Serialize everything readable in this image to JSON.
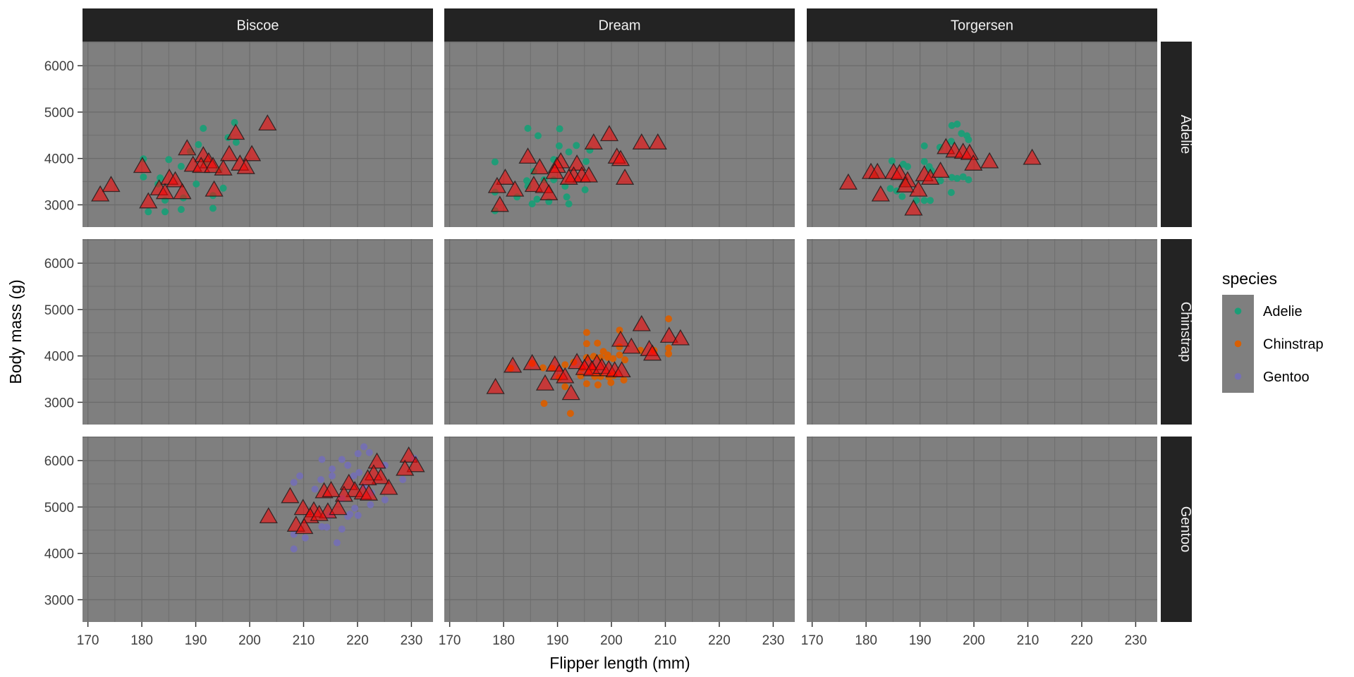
{
  "chart_data": {
    "type": "scatter",
    "title": "",
    "xlabel": "Flipper length (mm)",
    "ylabel": "Body mass (g)",
    "facet_cols": [
      "Biscoe",
      "Dream",
      "Torgersen"
    ],
    "facet_rows": [
      "Adelie",
      "Chinstrap",
      "Gentoo"
    ],
    "x_ticks": [
      170,
      180,
      190,
      200,
      210,
      220,
      230
    ],
    "y_ticks": [
      6000,
      5000,
      4000,
      3000
    ],
    "x_minor_ticks": [
      175,
      185,
      195,
      205,
      215,
      225
    ],
    "y_minor_ticks": [
      6500,
      5500,
      4500,
      3500
    ],
    "x_domain": [
      169.0,
      234.0
    ],
    "y_domain": [
      2520,
      6520
    ],
    "grid": true,
    "legend": {
      "title": "species",
      "position": "right",
      "entries": [
        {
          "label": "Adelie",
          "color": "#1B9E77"
        },
        {
          "label": "Chinstrap",
          "color": "#D95F02"
        },
        {
          "label": "Gentoo",
          "color": "#7570B3"
        }
      ]
    },
    "colors": {
      "panel_bg": "#7F7F7F",
      "grid_line": "#6C6C6C",
      "strip_bg": "#232323",
      "strip_text": "#F0F0F0",
      "tick_text": "#3F3F3F",
      "tick_mark": "#333333",
      "triangle_fill": "rgba(255,0,0,0.55)",
      "triangle_stroke": "rgba(30,25,25,0.8)",
      "figure_bg": "#FFFFFF"
    },
    "panels": [
      {
        "row": "Adelie",
        "col": "Biscoe",
        "species": "Adelie",
        "dots": [
          [
            197.2,
            4775
          ],
          [
            191.4,
            4650
          ],
          [
            196.0,
            4450
          ],
          [
            197.5,
            4350
          ],
          [
            190.5,
            4300
          ],
          [
            189.0,
            4150
          ],
          [
            185.0,
            3975
          ],
          [
            180.3,
            3990
          ],
          [
            187.3,
            3830
          ],
          [
            191.8,
            3930
          ],
          [
            194.3,
            3750
          ],
          [
            180.3,
            3600
          ],
          [
            183.4,
            3580
          ],
          [
            183.0,
            3450
          ],
          [
            190.1,
            3450
          ],
          [
            195.1,
            3360
          ],
          [
            187.7,
            3150
          ],
          [
            184.3,
            3100
          ],
          [
            193.2,
            3200
          ],
          [
            181.2,
            2850
          ],
          [
            184.3,
            2850
          ],
          [
            187.3,
            2900
          ],
          [
            193.2,
            2925
          ]
        ],
        "triangles": [
          [
            203.3,
            4750
          ],
          [
            197.4,
            4550
          ],
          [
            188.4,
            4215
          ],
          [
            191.4,
            4065
          ],
          [
            192.4,
            3935
          ],
          [
            196.2,
            4090
          ],
          [
            200.4,
            4090
          ],
          [
            180.1,
            3835
          ],
          [
            189.5,
            3860
          ],
          [
            191.0,
            3835
          ],
          [
            193.2,
            3835
          ],
          [
            195.1,
            3780
          ],
          [
            198.2,
            3885
          ],
          [
            199.3,
            3810
          ],
          [
            185.1,
            3580
          ],
          [
            186.2,
            3525
          ],
          [
            174.3,
            3425
          ],
          [
            172.3,
            3220
          ],
          [
            183.2,
            3350
          ],
          [
            184.3,
            3270
          ],
          [
            187.5,
            3270
          ],
          [
            193.4,
            3325
          ],
          [
            181.2,
            3070
          ]
        ]
      },
      {
        "row": "Adelie",
        "col": "Dream",
        "species": "Adelie",
        "dots": [
          [
            184.5,
            4650
          ],
          [
            186.4,
            4490
          ],
          [
            190.4,
            4640
          ],
          [
            190.3,
            4270
          ],
          [
            192.1,
            4140
          ],
          [
            193.5,
            4280
          ],
          [
            196.0,
            4180
          ],
          [
            178.4,
            3925
          ],
          [
            189.3,
            3975
          ],
          [
            185.6,
            3720
          ],
          [
            195.3,
            3935
          ],
          [
            184.3,
            3520
          ],
          [
            187.5,
            3540
          ],
          [
            189.3,
            3540
          ],
          [
            191.4,
            3400
          ],
          [
            195.1,
            3325
          ],
          [
            184.5,
            3400
          ],
          [
            182.5,
            3170
          ],
          [
            186.2,
            3120
          ],
          [
            188.4,
            3070
          ],
          [
            191.7,
            3170
          ],
          [
            192.1,
            3020
          ],
          [
            185.3,
            3020
          ],
          [
            178.4,
            3275
          ],
          [
            178.4,
            2875
          ]
        ],
        "triangles": [
          [
            199.6,
            4520
          ],
          [
            196.7,
            4340
          ],
          [
            205.6,
            4340
          ],
          [
            208.6,
            4340
          ],
          [
            184.5,
            4035
          ],
          [
            201.0,
            4035
          ],
          [
            201.7,
            3985
          ],
          [
            186.7,
            3805
          ],
          [
            190.6,
            3935
          ],
          [
            189.9,
            3835
          ],
          [
            193.6,
            3885
          ],
          [
            189.5,
            3705
          ],
          [
            193.0,
            3630
          ],
          [
            194.5,
            3630
          ],
          [
            195.8,
            3630
          ],
          [
            192.1,
            3580
          ],
          [
            180.3,
            3580
          ],
          [
            178.8,
            3400
          ],
          [
            182.1,
            3325
          ],
          [
            185.6,
            3425
          ],
          [
            187.5,
            3400
          ],
          [
            188.4,
            3245
          ],
          [
            202.5,
            3580
          ],
          [
            179.3,
            2995
          ]
        ]
      },
      {
        "row": "Adelie",
        "col": "Torgersen",
        "species": "Adelie",
        "dots": [
          [
            195.9,
            4710
          ],
          [
            196.9,
            4740
          ],
          [
            197.7,
            4540
          ],
          [
            198.7,
            4490
          ],
          [
            199.0,
            4405
          ],
          [
            190.8,
            4270
          ],
          [
            193.7,
            4240
          ],
          [
            195.8,
            4370
          ],
          [
            184.8,
            3945
          ],
          [
            186.9,
            3875
          ],
          [
            187.7,
            3825
          ],
          [
            190.8,
            3935
          ],
          [
            191.7,
            3825
          ],
          [
            192.1,
            3740
          ],
          [
            193.8,
            3520
          ],
          [
            195.9,
            3590
          ],
          [
            196.9,
            3570
          ],
          [
            198.0,
            3605
          ],
          [
            199.0,
            3540
          ],
          [
            195.8,
            3265
          ],
          [
            184.5,
            3350
          ],
          [
            185.7,
            3300
          ],
          [
            186.7,
            3180
          ],
          [
            187.3,
            3450
          ],
          [
            189.3,
            3095
          ],
          [
            190.8,
            3095
          ],
          [
            191.9,
            3095
          ],
          [
            181.7,
            3630
          ]
        ],
        "triangles": [
          [
            194.8,
            4240
          ],
          [
            196.4,
            4165
          ],
          [
            198.0,
            4140
          ],
          [
            199.2,
            4115
          ],
          [
            199.9,
            3885
          ],
          [
            202.9,
            3935
          ],
          [
            210.8,
            4010
          ],
          [
            180.9,
            3705
          ],
          [
            182.1,
            3705
          ],
          [
            185.1,
            3705
          ],
          [
            186.2,
            3680
          ],
          [
            187.7,
            3525
          ],
          [
            190.8,
            3655
          ],
          [
            191.9,
            3580
          ],
          [
            193.8,
            3730
          ],
          [
            187.3,
            3415
          ],
          [
            189.7,
            3325
          ],
          [
            182.7,
            3220
          ],
          [
            176.7,
            3475
          ],
          [
            188.8,
            2915
          ]
        ]
      },
      {
        "row": "Chinstrap",
        "col": "Dream",
        "species": "Chinstrap",
        "dots": [
          [
            210.6,
            4800
          ],
          [
            201.5,
            4555
          ],
          [
            195.4,
            4505
          ],
          [
            195.4,
            4265
          ],
          [
            197.4,
            4275
          ],
          [
            198.5,
            4095
          ],
          [
            199.3,
            4020
          ],
          [
            201.5,
            4195
          ],
          [
            205.4,
            4120
          ],
          [
            207.9,
            4120
          ],
          [
            210.6,
            4170
          ],
          [
            210.6,
            4045
          ],
          [
            195.4,
            3965
          ],
          [
            196.7,
            3990
          ],
          [
            198.0,
            3965
          ],
          [
            199.3,
            3965
          ],
          [
            200.3,
            3940
          ],
          [
            201.5,
            4020
          ],
          [
            202.5,
            3915
          ],
          [
            187.3,
            3745
          ],
          [
            191.4,
            3810
          ],
          [
            193.0,
            3865
          ],
          [
            194.5,
            3735
          ],
          [
            196.0,
            3685
          ],
          [
            196.9,
            3555
          ],
          [
            198.0,
            3555
          ],
          [
            199.5,
            3545
          ],
          [
            200.4,
            3580
          ],
          [
            194.3,
            3570
          ],
          [
            195.4,
            3400
          ],
          [
            197.5,
            3375
          ],
          [
            199.9,
            3425
          ],
          [
            202.3,
            3480
          ],
          [
            191.4,
            3335
          ],
          [
            187.5,
            2975
          ],
          [
            192.4,
            2760
          ],
          [
            181.3,
            3735
          ],
          [
            185.3,
            3840
          ],
          [
            189.0,
            3735
          ],
          [
            190.3,
            3530
          ]
        ],
        "triangles": [
          [
            205.6,
            4680
          ],
          [
            201.7,
            4345
          ],
          [
            203.7,
            4195
          ],
          [
            210.7,
            4430
          ],
          [
            212.8,
            4375
          ],
          [
            207.0,
            4145
          ],
          [
            207.6,
            4045
          ],
          [
            181.7,
            3785
          ],
          [
            185.3,
            3840
          ],
          [
            189.5,
            3810
          ],
          [
            193.6,
            3865
          ],
          [
            195.6,
            3840
          ],
          [
            197.3,
            3840
          ],
          [
            190.3,
            3630
          ],
          [
            191.4,
            3555
          ],
          [
            195.0,
            3735
          ],
          [
            196.4,
            3710
          ],
          [
            198.2,
            3760
          ],
          [
            199.5,
            3710
          ],
          [
            200.6,
            3685
          ],
          [
            201.9,
            3685
          ],
          [
            187.7,
            3400
          ],
          [
            192.5,
            3195
          ],
          [
            178.5,
            3325
          ]
        ]
      },
      {
        "row": "Gentoo",
        "col": "Biscoe",
        "species": "Gentoo",
        "dots": [
          [
            221.2,
            6300
          ],
          [
            220.1,
            6150
          ],
          [
            222.2,
            6175
          ],
          [
            230.5,
            6050
          ],
          [
            213.4,
            6025
          ],
          [
            217.1,
            6025
          ],
          [
            218.2,
            5900
          ],
          [
            215.3,
            5820
          ],
          [
            220.3,
            5745
          ],
          [
            225.1,
            5900
          ],
          [
            228.4,
            5590
          ],
          [
            209.3,
            5670
          ],
          [
            208.2,
            5530
          ],
          [
            212.1,
            5385
          ],
          [
            213.2,
            5590
          ],
          [
            215.3,
            5670
          ],
          [
            219.3,
            5670
          ],
          [
            221.2,
            5435
          ],
          [
            222.6,
            5310
          ],
          [
            225.1,
            5155
          ],
          [
            222.4,
            5050
          ],
          [
            219.5,
            4975
          ],
          [
            218.6,
            4845
          ],
          [
            220.1,
            4820
          ],
          [
            217.1,
            5180
          ],
          [
            213.4,
            4575
          ],
          [
            214.3,
            4565
          ],
          [
            217.1,
            4525
          ],
          [
            208.2,
            4410
          ],
          [
            210.3,
            4335
          ],
          [
            216.2,
            4230
          ],
          [
            208.2,
            4095
          ],
          [
            218.2,
            4795
          ],
          [
            214.9,
            4820
          ]
        ],
        "triangles": [
          [
            229.5,
            6105
          ],
          [
            230.8,
            5900
          ],
          [
            228.8,
            5820
          ],
          [
            223.6,
            5975
          ],
          [
            223.0,
            5720
          ],
          [
            224.3,
            5640
          ],
          [
            221.9,
            5615
          ],
          [
            225.8,
            5410
          ],
          [
            218.4,
            5515
          ],
          [
            219.5,
            5360
          ],
          [
            221.0,
            5310
          ],
          [
            222.1,
            5285
          ],
          [
            217.5,
            5260
          ],
          [
            213.8,
            5335
          ],
          [
            215.1,
            5360
          ],
          [
            207.5,
            5230
          ],
          [
            209.9,
            4975
          ],
          [
            211.9,
            4925
          ],
          [
            214.5,
            4900
          ],
          [
            216.4,
            4975
          ],
          [
            211.2,
            4795
          ],
          [
            212.9,
            4845
          ],
          [
            203.5,
            4795
          ],
          [
            208.6,
            4615
          ],
          [
            210.1,
            4565
          ]
        ]
      }
    ]
  }
}
